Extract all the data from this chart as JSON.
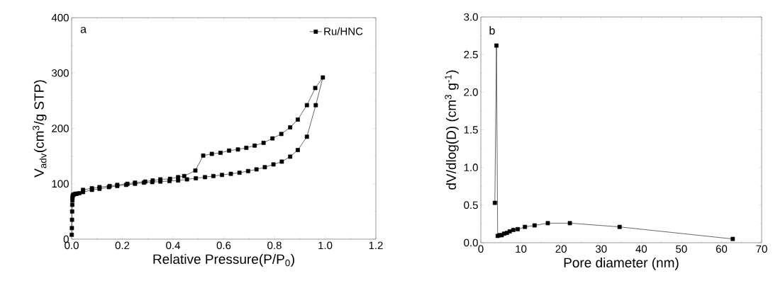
{
  "chart_data": [
    {
      "type": "line",
      "xlabel": "Relative Pressure(P/P$_{0}$)",
      "ylabel": "V$_{adv}$(cm$^{3}$/g STP)",
      "annotations": [
        "a"
      ],
      "legend": "top right",
      "marker": "square",
      "line_style": "solid",
      "xlim": [
        0,
        1.2
      ],
      "ylim": [
        0,
        400
      ],
      "xticks": [
        {
          "value": 0,
          "label": "0.0"
        },
        {
          "value": 0.2,
          "label": "0.2"
        },
        {
          "value": 0.4,
          "label": "0.4"
        },
        {
          "value": 0.6,
          "label": "0.6"
        },
        {
          "value": 0.8,
          "label": "0.8"
        },
        {
          "value": 1.0,
          "label": "1.0"
        },
        {
          "value": 1.2,
          "label": "1.2"
        }
      ],
      "yticks": [
        0,
        100,
        200,
        300,
        400
      ],
      "series": [
        {
          "name": "Ru/HNC",
          "color": "#000000",
          "x": [
            0.0005,
            0.001,
            0.0015,
            0.002,
            0.0025,
            0.003,
            0.0035,
            0.004,
            0.006,
            0.01,
            0.015,
            0.02,
            0.03,
            0.045,
            0.08,
            0.11,
            0.147,
            0.18,
            0.215,
            0.25,
            0.285,
            0.318,
            0.35,
            0.386,
            0.42,
            0.455,
            0.49,
            0.526,
            0.559,
            0.593,
            0.628,
            0.662,
            0.696,
            0.729,
            0.762,
            0.796,
            0.829,
            0.862,
            0.892,
            0.928,
            0.963,
            0.991,
            0.961,
            0.928,
            0.892,
            0.862,
            0.827,
            0.792,
            0.757,
            0.722,
            0.689,
            0.656,
            0.621,
            0.587,
            0.553,
            0.519,
            0.488,
            0.444,
            0.42,
            0.388,
            0.35,
            0.32,
            0.29,
            0.25,
            0.22,
            0.18,
            0.15,
            0.11,
            0.08,
            0.045
          ],
          "values": [
            8,
            20,
            35,
            50,
            62,
            70,
            75,
            78,
            80,
            81,
            82,
            82,
            83,
            85,
            89,
            91,
            94,
            96,
            98,
            100,
            102,
            103,
            104,
            105,
            106,
            108,
            110,
            112,
            114,
            116,
            118,
            120,
            123,
            126,
            130,
            135,
            140,
            149,
            161,
            185,
            242,
            292,
            273,
            242,
            216,
            202,
            190,
            182,
            174,
            169,
            165,
            162,
            160,
            156,
            154,
            151,
            124,
            114,
            112,
            109,
            108,
            106,
            104,
            102,
            100,
            98,
            96,
            94,
            92,
            89
          ]
        }
      ]
    },
    {
      "type": "line",
      "xlabel": "Pore  diameter (nm)",
      "ylabel": "dV/dlog(D) (cm$^{3}$ g$^{-1}$)",
      "annotations": [
        "b"
      ],
      "marker": "square",
      "line_style": "solid",
      "xlim": [
        0,
        70
      ],
      "ylim": [
        0,
        3.0
      ],
      "xticks": [
        0,
        10,
        20,
        30,
        40,
        50,
        60,
        70
      ],
      "yticks": [
        {
          "value": 0,
          "label": "0.0"
        },
        {
          "value": 0.5,
          "label": "0.5"
        },
        {
          "value": 1.0,
          "label": "1.0"
        },
        {
          "value": 1.5,
          "label": "1.5"
        },
        {
          "value": 2.0,
          "label": "2.0"
        },
        {
          "value": 2.5,
          "label": "2.5"
        },
        {
          "value": 3.0,
          "label": "3.0"
        }
      ],
      "series": [
        {
          "color": "#000000",
          "x": [
            3.5,
            3.9,
            4.2,
            4.7,
            5.2,
            5.8,
            6.5,
            7.2,
            8.1,
            9.2,
            11.0,
            13.4,
            16.7,
            22.2,
            34.6,
            62.8
          ],
          "values": [
            0.53,
            2.62,
            0.09,
            0.1,
            0.1,
            0.12,
            0.13,
            0.15,
            0.17,
            0.18,
            0.21,
            0.23,
            0.26,
            0.26,
            0.21,
            0.05
          ]
        }
      ]
    }
  ]
}
